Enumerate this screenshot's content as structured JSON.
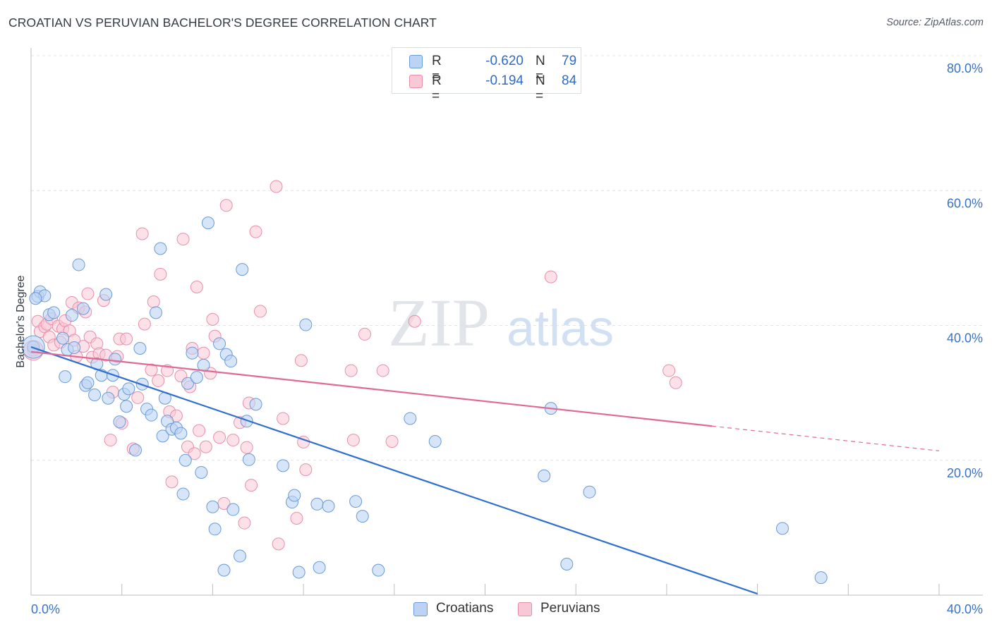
{
  "title": "CROATIAN VS PERUVIAN BACHELOR'S DEGREE CORRELATION CHART",
  "source": "Source: ZipAtlas.com",
  "watermark": {
    "zip": "ZIP",
    "atlas": "atlas"
  },
  "legend": {
    "r_label": "R =",
    "n_label": "N =",
    "croatians": {
      "r": "-0.620",
      "n": "79"
    },
    "peruvians": {
      "r": "-0.194",
      "n": "84"
    }
  },
  "colors": {
    "croatians_fill": "#bcd3f3",
    "croatians_stroke": "#6a9ad8",
    "croatians_line": "#2f6fce",
    "peruvians_fill": "#f9c8d6",
    "peruvians_stroke": "#e98eaa",
    "peruvians_line": "#e06a94",
    "axis_text": "#3a72c8",
    "grid": "#e1e4e8"
  },
  "chart_data": {
    "type": "scatter",
    "title": "CROATIAN VS PERUVIAN BACHELOR'S DEGREE CORRELATION CHART",
    "xlabel": "",
    "ylabel": "Bachelor's Degree",
    "xlim": [
      0,
      40
    ],
    "ylim": [
      0,
      80
    ],
    "x_tick_labels": [
      "0.0%",
      "40.0%"
    ],
    "y_ticks": [
      20,
      40,
      60,
      80
    ],
    "y_tick_labels": [
      "20.0%",
      "40.0%",
      "60.0%",
      "80.0%"
    ],
    "grid": true,
    "legend_position": "top-center",
    "bottom_legend": [
      "Croatians",
      "Peruvians"
    ],
    "series": [
      {
        "name": "Croatians",
        "r": -0.62,
        "n": 79,
        "trend": {
          "x": [
            0.0,
            32.0
          ],
          "y": [
            36.8,
            0.2
          ],
          "dashed_from": null
        },
        "points": [
          [
            0.1,
            36.8
          ],
          [
            0.3,
            44.3
          ],
          [
            0.4,
            45.0
          ],
          [
            0.6,
            44.4
          ],
          [
            0.8,
            41.6
          ],
          [
            1.0,
            41.9
          ],
          [
            1.4,
            38.1
          ],
          [
            1.5,
            32.4
          ],
          [
            1.6,
            36.4
          ],
          [
            1.8,
            41.5
          ],
          [
            1.9,
            36.7
          ],
          [
            2.1,
            49.0
          ],
          [
            2.3,
            42.5
          ],
          [
            2.4,
            31.1
          ],
          [
            2.5,
            31.5
          ],
          [
            2.8,
            29.7
          ],
          [
            2.9,
            34.3
          ],
          [
            3.1,
            32.6
          ],
          [
            3.3,
            44.6
          ],
          [
            3.4,
            29.2
          ],
          [
            3.6,
            32.6
          ],
          [
            3.7,
            35.0
          ],
          [
            3.9,
            25.7
          ],
          [
            4.1,
            29.8
          ],
          [
            4.2,
            28.0
          ],
          [
            4.3,
            30.6
          ],
          [
            4.6,
            21.5
          ],
          [
            4.8,
            36.6
          ],
          [
            4.9,
            31.3
          ],
          [
            5.1,
            27.6
          ],
          [
            5.3,
            26.7
          ],
          [
            5.5,
            41.9
          ],
          [
            5.7,
            51.4
          ],
          [
            5.8,
            23.6
          ],
          [
            5.9,
            29.2
          ],
          [
            6.0,
            25.8
          ],
          [
            6.2,
            24.6
          ],
          [
            6.4,
            24.8
          ],
          [
            6.6,
            24.0
          ],
          [
            6.7,
            15.0
          ],
          [
            6.8,
            20.0
          ],
          [
            6.9,
            31.4
          ],
          [
            7.1,
            35.9
          ],
          [
            7.3,
            32.3
          ],
          [
            7.5,
            18.2
          ],
          [
            7.6,
            34.1
          ],
          [
            7.8,
            55.2
          ],
          [
            8.0,
            13.1
          ],
          [
            8.1,
            9.8
          ],
          [
            8.3,
            37.3
          ],
          [
            8.5,
            3.7
          ],
          [
            8.6,
            35.7
          ],
          [
            8.8,
            34.7
          ],
          [
            8.9,
            12.7
          ],
          [
            9.2,
            5.8
          ],
          [
            9.3,
            48.3
          ],
          [
            9.5,
            25.8
          ],
          [
            9.6,
            20.1
          ],
          [
            9.9,
            28.3
          ],
          [
            11.1,
            19.2
          ],
          [
            11.5,
            13.8
          ],
          [
            11.6,
            14.8
          ],
          [
            11.8,
            3.4
          ],
          [
            12.1,
            40.1
          ],
          [
            12.6,
            13.5
          ],
          [
            12.7,
            4.1
          ],
          [
            13.1,
            13.2
          ],
          [
            14.3,
            13.9
          ],
          [
            14.6,
            11.7
          ],
          [
            15.3,
            3.7
          ],
          [
            16.7,
            26.2
          ],
          [
            17.8,
            22.8
          ],
          [
            22.6,
            17.7
          ],
          [
            22.9,
            27.7
          ],
          [
            23.6,
            4.6
          ],
          [
            24.6,
            15.3
          ],
          [
            33.1,
            9.9
          ],
          [
            34.8,
            2.6
          ],
          [
            0.2,
            44.0
          ]
        ]
      },
      {
        "name": "Peruvians",
        "r": -0.194,
        "n": 84,
        "trend": {
          "x": [
            0.0,
            40.0
          ],
          "y": [
            36.1,
            21.4
          ],
          "dashed_from": 30.0
        },
        "points": [
          [
            0.1,
            36.3
          ],
          [
            0.3,
            40.6
          ],
          [
            0.4,
            39.1
          ],
          [
            0.6,
            39.8
          ],
          [
            0.7,
            40.2
          ],
          [
            0.8,
            38.3
          ],
          [
            0.9,
            41.0
          ],
          [
            1.0,
            37.1
          ],
          [
            1.2,
            39.9
          ],
          [
            1.3,
            37.5
          ],
          [
            1.4,
            39.5
          ],
          [
            1.5,
            40.7
          ],
          [
            1.7,
            39.2
          ],
          [
            1.8,
            43.4
          ],
          [
            1.9,
            37.8
          ],
          [
            2.0,
            35.4
          ],
          [
            2.1,
            42.6
          ],
          [
            2.3,
            36.9
          ],
          [
            2.4,
            42.0
          ],
          [
            2.5,
            44.7
          ],
          [
            2.6,
            38.3
          ],
          [
            2.7,
            35.3
          ],
          [
            2.9,
            37.3
          ],
          [
            3.0,
            35.8
          ],
          [
            3.2,
            43.7
          ],
          [
            3.3,
            35.6
          ],
          [
            3.5,
            23.0
          ],
          [
            3.6,
            30.1
          ],
          [
            3.8,
            35.4
          ],
          [
            3.9,
            38.0
          ],
          [
            4.0,
            25.5
          ],
          [
            4.2,
            38.0
          ],
          [
            4.5,
            21.7
          ],
          [
            4.7,
            29.3
          ],
          [
            4.9,
            53.6
          ],
          [
            5.0,
            40.2
          ],
          [
            5.3,
            33.4
          ],
          [
            5.4,
            43.5
          ],
          [
            5.6,
            31.8
          ],
          [
            5.7,
            47.6
          ],
          [
            6.0,
            33.3
          ],
          [
            6.1,
            27.2
          ],
          [
            6.2,
            16.8
          ],
          [
            6.4,
            26.6
          ],
          [
            6.6,
            32.5
          ],
          [
            6.7,
            52.8
          ],
          [
            6.9,
            22.0
          ],
          [
            7.0,
            30.9
          ],
          [
            7.1,
            36.6
          ],
          [
            7.2,
            21.0
          ],
          [
            7.3,
            45.7
          ],
          [
            7.4,
            24.4
          ],
          [
            7.6,
            35.9
          ],
          [
            7.7,
            22.0
          ],
          [
            7.9,
            32.9
          ],
          [
            8.0,
            40.9
          ],
          [
            8.1,
            38.4
          ],
          [
            8.3,
            23.4
          ],
          [
            8.5,
            13.6
          ],
          [
            8.6,
            57.8
          ],
          [
            8.9,
            23.0
          ],
          [
            9.2,
            25.6
          ],
          [
            9.4,
            10.7
          ],
          [
            9.5,
            21.9
          ],
          [
            9.6,
            28.5
          ],
          [
            9.7,
            16.3
          ],
          [
            9.9,
            53.9
          ],
          [
            10.1,
            42.1
          ],
          [
            10.8,
            60.6
          ],
          [
            10.9,
            7.6
          ],
          [
            11.1,
            26.2
          ],
          [
            11.7,
            11.4
          ],
          [
            11.9,
            34.8
          ],
          [
            12.0,
            22.7
          ],
          [
            12.1,
            18.6
          ],
          [
            14.1,
            33.3
          ],
          [
            14.2,
            23.0
          ],
          [
            14.7,
            38.7
          ],
          [
            15.5,
            33.3
          ],
          [
            15.9,
            22.8
          ],
          [
            16.9,
            40.6
          ],
          [
            22.9,
            47.2
          ],
          [
            28.1,
            33.3
          ],
          [
            28.4,
            31.5
          ]
        ]
      }
    ]
  }
}
